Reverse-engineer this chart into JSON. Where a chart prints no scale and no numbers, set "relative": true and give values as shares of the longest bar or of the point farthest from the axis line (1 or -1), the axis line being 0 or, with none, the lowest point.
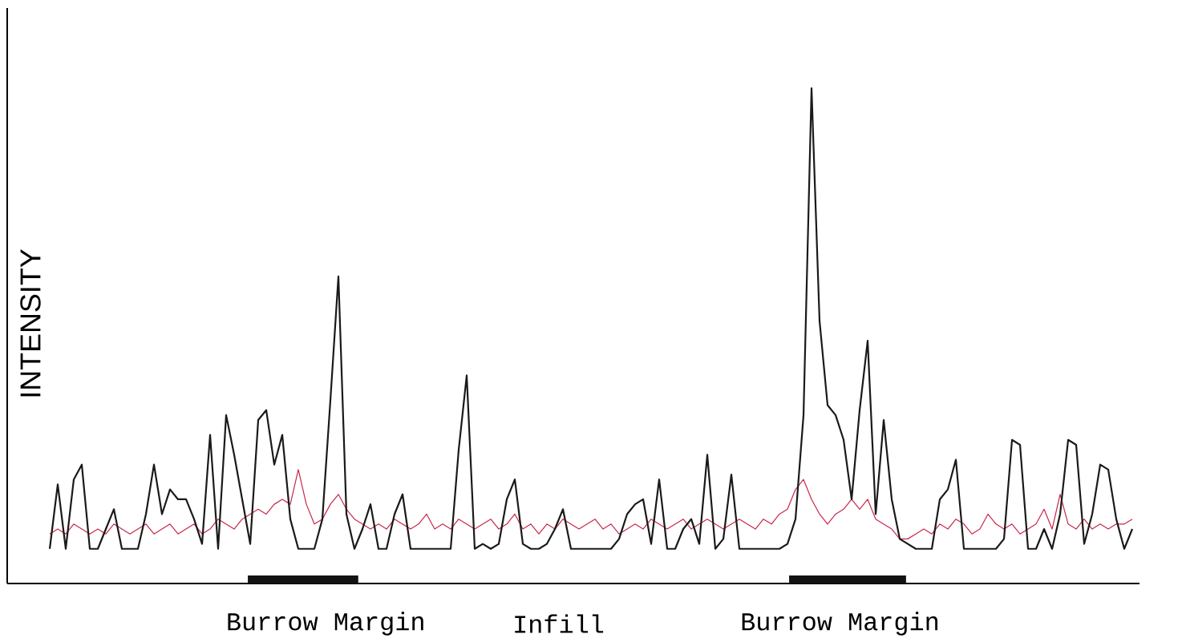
{
  "chart_data": {
    "type": "line",
    "relative": true,
    "ylabel": "INTENSITY",
    "categories": [
      null,
      null,
      null,
      null,
      null,
      null,
      null,
      null,
      null,
      null,
      null,
      null,
      null,
      null,
      null,
      null,
      null,
      null,
      null,
      null,
      null,
      null,
      null,
      null,
      null,
      null,
      null,
      null,
      null,
      null,
      null,
      null,
      null,
      null,
      null,
      null,
      null,
      null,
      null,
      null,
      null,
      null,
      null,
      null,
      null,
      null,
      null,
      null,
      null,
      null,
      null,
      null,
      null,
      null,
      null,
      null,
      null,
      null,
      null,
      null,
      null,
      null,
      null,
      null,
      null,
      null,
      null,
      null,
      null,
      null,
      null,
      null,
      null,
      null,
      null,
      null,
      null,
      null,
      null,
      null,
      null,
      null,
      null,
      null,
      null,
      null,
      null,
      null,
      null,
      null,
      null,
      null,
      null,
      null,
      null,
      null,
      null,
      null,
      null,
      null,
      null,
      null,
      null,
      null,
      null,
      null,
      null,
      null,
      null,
      null,
      null,
      null,
      null,
      null,
      null,
      null,
      null,
      null,
      null,
      null,
      null,
      null,
      null,
      null,
      null,
      null,
      null,
      null,
      null,
      null,
      null,
      null,
      null,
      null,
      null,
      null
    ],
    "series": [
      {
        "color": "#c8284a",
        "values": [
          0.1,
          0.11,
          0.1,
          0.12,
          0.11,
          0.1,
          0.11,
          0.1,
          0.12,
          0.11,
          0.1,
          0.11,
          0.12,
          0.1,
          0.11,
          0.12,
          0.1,
          0.11,
          0.12,
          0.1,
          0.11,
          0.13,
          0.12,
          0.11,
          0.13,
          0.14,
          0.15,
          0.14,
          0.16,
          0.17,
          0.16,
          0.23,
          0.16,
          0.12,
          0.13,
          0.16,
          0.18,
          0.15,
          0.13,
          0.12,
          0.11,
          0.12,
          0.11,
          0.13,
          0.12,
          0.11,
          0.12,
          0.14,
          0.11,
          0.12,
          0.11,
          0.13,
          0.12,
          0.11,
          0.12,
          0.13,
          0.11,
          0.12,
          0.14,
          0.11,
          0.12,
          0.1,
          0.12,
          0.11,
          0.13,
          0.12,
          0.11,
          0.12,
          0.13,
          0.11,
          0.12,
          0.1,
          0.11,
          0.12,
          0.11,
          0.13,
          0.12,
          0.11,
          0.12,
          0.13,
          0.11,
          0.12,
          0.13,
          0.12,
          0.11,
          0.12,
          0.13,
          0.12,
          0.11,
          0.13,
          0.12,
          0.14,
          0.15,
          0.19,
          0.21,
          0.17,
          0.14,
          0.12,
          0.14,
          0.15,
          0.17,
          0.15,
          0.17,
          0.13,
          0.12,
          0.11,
          0.09,
          0.09,
          0.1,
          0.11,
          0.1,
          0.12,
          0.11,
          0.13,
          0.12,
          0.1,
          0.11,
          0.14,
          0.12,
          0.11,
          0.12,
          0.1,
          0.11,
          0.12,
          0.15,
          0.11,
          0.18,
          0.12,
          0.11,
          0.13,
          0.11,
          0.12,
          0.11,
          0.12,
          0.12,
          0.13
        ]
      },
      {
        "color": "#1a1a1a",
        "values": [
          0.07,
          0.2,
          0.07,
          0.21,
          0.24,
          0.07,
          0.07,
          0.11,
          0.15,
          0.07,
          0.07,
          0.07,
          0.14,
          0.24,
          0.14,
          0.19,
          0.17,
          0.17,
          0.13,
          0.08,
          0.3,
          0.07,
          0.34,
          0.26,
          0.17,
          0.08,
          0.33,
          0.35,
          0.24,
          0.3,
          0.13,
          0.07,
          0.07,
          0.07,
          0.13,
          0.37,
          0.62,
          0.14,
          0.07,
          0.11,
          0.16,
          0.07,
          0.07,
          0.14,
          0.18,
          0.07,
          0.07,
          0.07,
          0.07,
          0.07,
          0.07,
          0.27,
          0.42,
          0.07,
          0.08,
          0.07,
          0.08,
          0.17,
          0.21,
          0.08,
          0.07,
          0.07,
          0.08,
          0.11,
          0.15,
          0.07,
          0.07,
          0.07,
          0.07,
          0.07,
          0.07,
          0.09,
          0.14,
          0.16,
          0.17,
          0.08,
          0.21,
          0.07,
          0.07,
          0.11,
          0.13,
          0.08,
          0.26,
          0.07,
          0.09,
          0.22,
          0.07,
          0.07,
          0.07,
          0.07,
          0.07,
          0.07,
          0.08,
          0.13,
          0.34,
          1.0,
          0.53,
          0.36,
          0.34,
          0.29,
          0.17,
          0.35,
          0.49,
          0.14,
          0.33,
          0.17,
          0.09,
          0.08,
          0.07,
          0.07,
          0.07,
          0.17,
          0.19,
          0.25,
          0.07,
          0.07,
          0.07,
          0.07,
          0.07,
          0.09,
          0.29,
          0.28,
          0.07,
          0.07,
          0.11,
          0.07,
          0.14,
          0.29,
          0.28,
          0.08,
          0.14,
          0.24,
          0.23,
          0.13,
          0.07,
          0.11
        ]
      }
    ],
    "annotations": [
      "Burrow Margin",
      "Infill",
      "Burrow Margin"
    ]
  }
}
